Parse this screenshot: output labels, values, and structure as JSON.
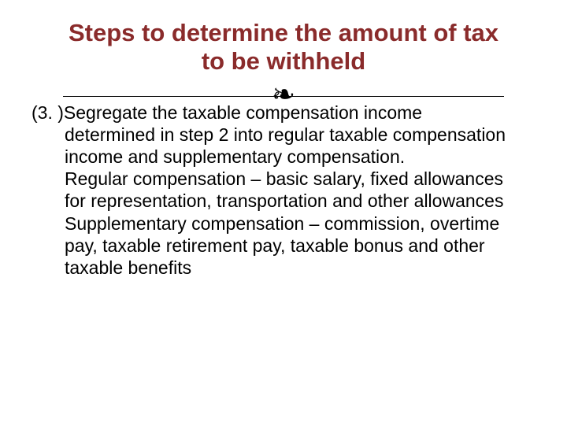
{
  "colors": {
    "title_color": "#8a2b2b",
    "body_color": "#000000",
    "divider_color": "#000000",
    "background": "#ffffff"
  },
  "typography": {
    "title_font": "Comic Sans MS",
    "title_fontsize_pt": 23,
    "title_weight": "700",
    "body_font": "Arial",
    "body_fontsize_pt": 17,
    "body_weight": "400"
  },
  "title": "Steps to determine the amount of tax to be withheld",
  "divider_glyph": "❧",
  "item_marker": "(3. )",
  "body_first_line": "Segregate the taxable compensation income",
  "body_rest": "determined in step 2 into regular taxable compensation income and supplementary compensation.",
  "regular_label": "Regular compensation",
  "regular_def": " – basic salary, fixed allowances for representation, transportation and other allowances",
  "supp_label": "Supplementary compensation",
  "supp_def": " – commission, overtime pay, taxable retirement pay, taxable bonus and other taxable benefits"
}
